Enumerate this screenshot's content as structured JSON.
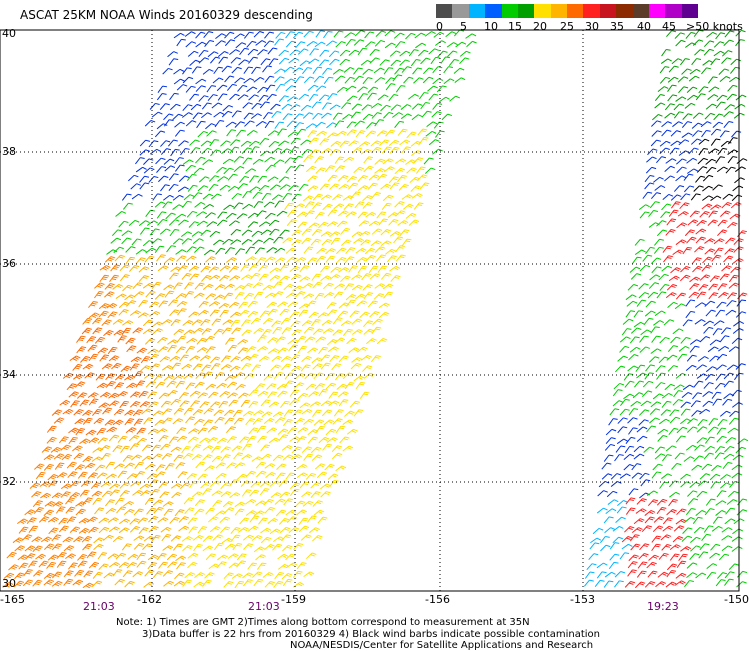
{
  "title": "ASCAT 25KM NOAA Winds 20160329 descending",
  "colorbar": {
    "labels": [
      "0",
      "5",
      "10",
      "15",
      "20",
      "25",
      "30",
      "35",
      "40",
      "45"
    ],
    "max_label": ">50 knots",
    "colors": [
      "#4d4d4d",
      "#999999",
      "#00b4ff",
      "#0060ff",
      "#00cc00",
      "#00a000",
      "#ffe000",
      "#ffb400",
      "#ff6a00",
      "#ff2020",
      "#c8141e",
      "#8c2a00",
      "#5a3c28",
      "#ff00ff",
      "#b000c8",
      "#600090"
    ]
  },
  "map": {
    "lat_labels": [
      "40",
      "38",
      "36",
      "34",
      "32",
      "30"
    ],
    "lon_labels": [
      "-165",
      "-162",
      "-159",
      "-156",
      "-153",
      "-150"
    ],
    "time_labels": [
      "21:03",
      "21:03",
      "19:23"
    ]
  },
  "notes": {
    "line1": "Note: 1) Times are GMT 2)Times along bottom correspond to measurement at 35N",
    "line2": "3)Data buffer is 22 hrs from 20160329 4) Black wind barbs indicate possible contamination",
    "line3": "NOAA/NESDIS/Center for Satellite Applications and Research"
  }
}
